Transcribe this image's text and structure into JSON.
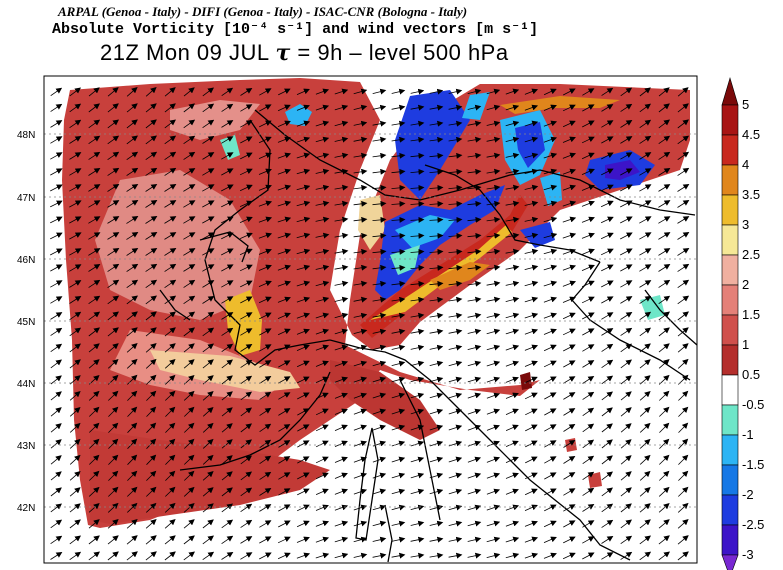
{
  "header": {
    "credits": "ARPAL (Genoa - Italy)  -  DIFI (Genoa - Italy)  -  ISAC-CNR (Bologna - Italy)",
    "title": "Absolute Vorticity [10⁻⁴ s⁻¹] and wind vectors [m s⁻¹]",
    "subtitle_time": "21Z Mon 09 JUL",
    "subtitle_tau": "τ",
    "subtitle_rest": " = 9h  –  level 500 hPa"
  },
  "map": {
    "lat_labels": [
      "48N",
      "47N",
      "46N",
      "45N",
      "44N",
      "43N",
      "42N"
    ],
    "wind_direction_deg": 25
  },
  "colorbar": {
    "labels": [
      "5",
      "4.5",
      "4",
      "3.5",
      "3",
      "2.5",
      "2",
      "1.5",
      "1",
      "0.5",
      "-0.5",
      "-1",
      "-1.5",
      "-2",
      "-2.5",
      "-3"
    ],
    "colors": [
      "#7a0a0a",
      "#a81414",
      "#c8281e",
      "#e0861c",
      "#eebc2c",
      "#f6e896",
      "#f0b0a0",
      "#e48078",
      "#d0504c",
      "#b42e2c",
      "#ffffff",
      "#6ee6c8",
      "#2cb4f4",
      "#1678e6",
      "#1e3ce0",
      "#3c14c8",
      "#7828d2"
    ]
  }
}
